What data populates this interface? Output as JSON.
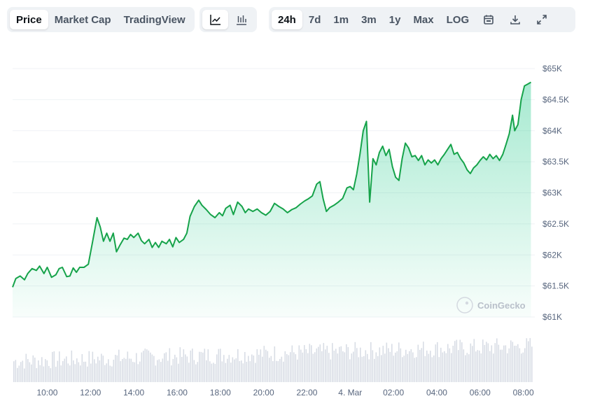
{
  "toolbar": {
    "chart_types": [
      {
        "label": "Price",
        "active": true
      },
      {
        "label": "Market Cap",
        "active": false
      },
      {
        "label": "TradingView",
        "active": false
      }
    ],
    "view_icons": [
      "line-chart-icon",
      "candlestick-chart-icon"
    ],
    "ranges": [
      {
        "label": "24h",
        "active": true
      },
      {
        "label": "7d",
        "active": false
      },
      {
        "label": "1m",
        "active": false
      },
      {
        "label": "3m",
        "active": false
      },
      {
        "label": "1y",
        "active": false
      },
      {
        "label": "Max",
        "active": false
      },
      {
        "label": "LOG",
        "active": false
      }
    ],
    "action_icons": [
      "calendar-icon",
      "download-icon",
      "fullscreen-icon"
    ]
  },
  "watermark": "CoinGecko",
  "colors": {
    "line": "#16a34a",
    "fill_top": "#16c784",
    "volume": "#d8dde5",
    "grid": "#eff2f5"
  },
  "chart_data": {
    "type": "area",
    "title": "",
    "xlabel": "",
    "ylabel": "",
    "ylim": [
      61000,
      65000
    ],
    "y_ticks": [
      {
        "value": 65000,
        "label": "$65K"
      },
      {
        "value": 64500,
        "label": "$64.5K"
      },
      {
        "value": 64000,
        "label": "$64K"
      },
      {
        "value": 63500,
        "label": "$63.5K"
      },
      {
        "value": 63000,
        "label": "$63K"
      },
      {
        "value": 62500,
        "label": "$62.5K"
      },
      {
        "value": 62000,
        "label": "$62K"
      },
      {
        "value": 61500,
        "label": "$61.5K"
      },
      {
        "value": 61000,
        "label": "$61K"
      }
    ],
    "x_range_hours": [
      8.4,
      32.4
    ],
    "x_ticks": [
      {
        "hour": 10,
        "label": "10:00"
      },
      {
        "hour": 12,
        "label": "12:00"
      },
      {
        "hour": 14,
        "label": "14:00"
      },
      {
        "hour": 16,
        "label": "16:00"
      },
      {
        "hour": 18,
        "label": "18:00"
      },
      {
        "hour": 20,
        "label": "20:00"
      },
      {
        "hour": 22,
        "label": "22:00"
      },
      {
        "hour": 24,
        "label": "4. Mar"
      },
      {
        "hour": 26,
        "label": "02:00"
      },
      {
        "hour": 28,
        "label": "04:00"
      },
      {
        "hour": 30,
        "label": "06:00"
      },
      {
        "hour": 32,
        "label": "08:00"
      }
    ],
    "series": [
      {
        "points": [
          [
            8.4,
            61480
          ],
          [
            8.55,
            61620
          ],
          [
            8.75,
            61660
          ],
          [
            8.95,
            61600
          ],
          [
            9.1,
            61700
          ],
          [
            9.3,
            61780
          ],
          [
            9.5,
            61750
          ],
          [
            9.65,
            61820
          ],
          [
            9.85,
            61700
          ],
          [
            10.0,
            61800
          ],
          [
            10.2,
            61640
          ],
          [
            10.4,
            61680
          ],
          [
            10.55,
            61780
          ],
          [
            10.7,
            61800
          ],
          [
            10.9,
            61650
          ],
          [
            11.05,
            61660
          ],
          [
            11.2,
            61790
          ],
          [
            11.35,
            61720
          ],
          [
            11.5,
            61800
          ],
          [
            11.7,
            61800
          ],
          [
            11.9,
            61850
          ],
          [
            12.1,
            62220
          ],
          [
            12.3,
            62600
          ],
          [
            12.45,
            62450
          ],
          [
            12.6,
            62220
          ],
          [
            12.75,
            62350
          ],
          [
            12.9,
            62220
          ],
          [
            13.05,
            62350
          ],
          [
            13.2,
            62050
          ],
          [
            13.35,
            62150
          ],
          [
            13.55,
            62270
          ],
          [
            13.7,
            62250
          ],
          [
            13.85,
            62330
          ],
          [
            14.0,
            62280
          ],
          [
            14.2,
            62350
          ],
          [
            14.35,
            62230
          ],
          [
            14.5,
            62180
          ],
          [
            14.7,
            62250
          ],
          [
            14.85,
            62120
          ],
          [
            15.0,
            62200
          ],
          [
            15.15,
            62120
          ],
          [
            15.3,
            62220
          ],
          [
            15.5,
            62180
          ],
          [
            15.65,
            62250
          ],
          [
            15.8,
            62130
          ],
          [
            15.95,
            62280
          ],
          [
            16.1,
            62200
          ],
          [
            16.3,
            62250
          ],
          [
            16.45,
            62350
          ],
          [
            16.6,
            62620
          ],
          [
            16.8,
            62780
          ],
          [
            17.0,
            62880
          ],
          [
            17.15,
            62800
          ],
          [
            17.35,
            62730
          ],
          [
            17.55,
            62650
          ],
          [
            17.75,
            62600
          ],
          [
            17.95,
            62680
          ],
          [
            18.1,
            62630
          ],
          [
            18.25,
            62750
          ],
          [
            18.45,
            62800
          ],
          [
            18.6,
            62650
          ],
          [
            18.8,
            62850
          ],
          [
            19.0,
            62780
          ],
          [
            19.15,
            62680
          ],
          [
            19.3,
            62740
          ],
          [
            19.5,
            62700
          ],
          [
            19.7,
            62740
          ],
          [
            19.9,
            62680
          ],
          [
            20.1,
            62640
          ],
          [
            20.3,
            62700
          ],
          [
            20.5,
            62830
          ],
          [
            20.7,
            62780
          ],
          [
            20.9,
            62740
          ],
          [
            21.1,
            62680
          ],
          [
            21.3,
            62730
          ],
          [
            21.5,
            62760
          ],
          [
            21.7,
            62820
          ],
          [
            21.9,
            62870
          ],
          [
            22.05,
            62900
          ],
          [
            22.25,
            62950
          ],
          [
            22.45,
            63140
          ],
          [
            22.6,
            63180
          ],
          [
            22.75,
            62900
          ],
          [
            22.9,
            62700
          ],
          [
            23.05,
            62760
          ],
          [
            23.25,
            62800
          ],
          [
            23.45,
            62850
          ],
          [
            23.65,
            62910
          ],
          [
            23.85,
            63080
          ],
          [
            24.0,
            63100
          ],
          [
            24.15,
            63050
          ],
          [
            24.3,
            63300
          ],
          [
            24.45,
            63620
          ],
          [
            24.6,
            64000
          ],
          [
            24.75,
            64150
          ],
          [
            24.9,
            62850
          ],
          [
            25.05,
            63550
          ],
          [
            25.2,
            63450
          ],
          [
            25.35,
            63650
          ],
          [
            25.5,
            63750
          ],
          [
            25.65,
            63600
          ],
          [
            25.8,
            63700
          ],
          [
            25.95,
            63420
          ],
          [
            26.1,
            63250
          ],
          [
            26.25,
            63200
          ],
          [
            26.4,
            63550
          ],
          [
            26.55,
            63800
          ],
          [
            26.7,
            63720
          ],
          [
            26.85,
            63580
          ],
          [
            27.0,
            63600
          ],
          [
            27.15,
            63520
          ],
          [
            27.3,
            63600
          ],
          [
            27.45,
            63450
          ],
          [
            27.6,
            63530
          ],
          [
            27.75,
            63480
          ],
          [
            27.9,
            63530
          ],
          [
            28.05,
            63450
          ],
          [
            28.2,
            63550
          ],
          [
            28.35,
            63620
          ],
          [
            28.5,
            63700
          ],
          [
            28.65,
            63780
          ],
          [
            28.8,
            63620
          ],
          [
            28.95,
            63650
          ],
          [
            29.1,
            63550
          ],
          [
            29.25,
            63480
          ],
          [
            29.4,
            63370
          ],
          [
            29.55,
            63310
          ],
          [
            29.7,
            63400
          ],
          [
            29.85,
            63450
          ],
          [
            30.0,
            63520
          ],
          [
            30.15,
            63580
          ],
          [
            30.3,
            63530
          ],
          [
            30.45,
            63620
          ],
          [
            30.6,
            63550
          ],
          [
            30.75,
            63600
          ],
          [
            30.9,
            63520
          ],
          [
            31.05,
            63620
          ],
          [
            31.2,
            63780
          ],
          [
            31.35,
            63950
          ],
          [
            31.5,
            64250
          ],
          [
            31.6,
            64000
          ],
          [
            31.75,
            64100
          ],
          [
            31.9,
            64500
          ],
          [
            32.05,
            64720
          ],
          [
            32.2,
            64750
          ],
          [
            32.35,
            64780
          ]
        ]
      }
    ]
  }
}
